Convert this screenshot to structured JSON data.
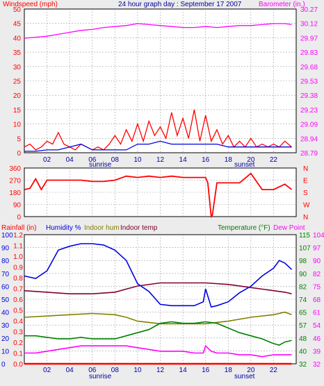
{
  "title": "24 hour graph day : September 17 2007",
  "hour_labels": [
    "02",
    "04",
    "06",
    "08",
    "10",
    "12",
    "14",
    "16",
    "18",
    "20",
    "22"
  ],
  "sunrise_label": "sunrise",
  "sunset_label": "sunset",
  "colors": {
    "panel_bg": "#ffffff",
    "page_bg": "#ececec",
    "grid": "#a0a0a0",
    "windspeed": "#ff0000",
    "barometer": "#ff00ff",
    "wind_dir": "#ff0000",
    "rainfall": "#ff0000",
    "humidity": "#0000e0",
    "indoor_hum": "#808000",
    "indoor_temp": "#800030",
    "temperature": "#008000",
    "dew_point": "#ff00ff"
  },
  "chart_data": [
    {
      "type": "line",
      "id": "wind-baro",
      "x_unit": "hour",
      "xlim": [
        0,
        24
      ],
      "left_axis": {
        "label": "Windspeed (mph)",
        "ticks": [
          "0",
          "5",
          "10",
          "15",
          "20",
          "25",
          "30",
          "35",
          "40",
          "45",
          "50"
        ],
        "ylim": [
          0,
          50
        ]
      },
      "right_axis": {
        "label": "Barometer (in.)",
        "ticks": [
          "28.79",
          "28.94",
          "29.09",
          "29.23",
          "29.38",
          "29.53",
          "29.68",
          "29.83",
          "29.97",
          "30.12",
          "30.27"
        ],
        "ylim": [
          28.79,
          30.27
        ]
      },
      "series": [
        {
          "axis": "right",
          "color_key": "barometer",
          "x": [
            0,
            1,
            2,
            3,
            4,
            5,
            6,
            7,
            8,
            9,
            10,
            11,
            12,
            13,
            14,
            15,
            16,
            17,
            18,
            19,
            20,
            21,
            22,
            23,
            23.6
          ],
          "y": [
            29.97,
            29.98,
            29.99,
            30.01,
            30.03,
            30.05,
            30.06,
            30.08,
            30.09,
            30.1,
            30.12,
            30.11,
            30.1,
            30.09,
            30.08,
            30.08,
            30.09,
            30.08,
            30.09,
            30.1,
            30.1,
            30.11,
            30.12,
            30.12,
            30.11
          ]
        },
        {
          "axis": "left",
          "color_key": "windspeed",
          "x": [
            0,
            0.5,
            1,
            1.5,
            2,
            2.5,
            3,
            3.5,
            4,
            4.5,
            5,
            5.5,
            6,
            6.5,
            7,
            7.5,
            8,
            8.5,
            9,
            9.5,
            10,
            10.5,
            11,
            11.5,
            12,
            12.5,
            13,
            13.5,
            14,
            14.5,
            15,
            15.5,
            16,
            16.5,
            17,
            17.5,
            18,
            18.5,
            19,
            19.5,
            20,
            20.5,
            21,
            21.5,
            22,
            22.5,
            23,
            23.6
          ],
          "y": [
            2,
            3,
            1,
            2,
            4,
            3,
            7,
            3,
            2,
            1,
            3,
            2,
            1,
            2,
            1,
            3,
            6,
            3,
            8,
            4,
            10,
            4,
            11,
            6,
            9,
            5,
            14,
            6,
            12,
            5,
            15,
            4,
            13,
            4,
            8,
            3,
            6,
            2,
            4,
            2,
            5,
            2,
            3,
            2,
            3,
            2,
            4,
            2
          ]
        },
        {
          "axis": "left",
          "color_key": "humidity",
          "x": [
            0,
            1,
            2,
            3,
            4,
            5,
            6,
            7,
            8,
            9,
            10,
            11,
            12,
            13,
            14,
            15,
            16,
            17,
            18,
            19,
            20,
            21,
            22,
            23,
            23.6
          ],
          "y": [
            0.5,
            0.5,
            1,
            1,
            2,
            3,
            1,
            1,
            1,
            1,
            3,
            3,
            4,
            3,
            3,
            3,
            3,
            3,
            2,
            2,
            2,
            2,
            2,
            2,
            2
          ]
        }
      ]
    },
    {
      "type": "line",
      "id": "wind-direction",
      "x_unit": "hour",
      "xlim": [
        0,
        24
      ],
      "left_axis": {
        "label": "",
        "ticks": [
          "0",
          "90",
          "180",
          "270",
          "360"
        ],
        "ylim": [
          0,
          360
        ]
      },
      "right_axis": {
        "label": "",
        "ticks": [
          "N",
          "W",
          "S",
          "E",
          "N"
        ]
      },
      "series": [
        {
          "axis": "left",
          "color_key": "wind_dir",
          "x": [
            0,
            0.5,
            1,
            1.5,
            2,
            3,
            4,
            5,
            6,
            7,
            8,
            9,
            10,
            11,
            12,
            13,
            14,
            15,
            16,
            16.2,
            16.5,
            16.6,
            17,
            18,
            19,
            20,
            21,
            22,
            23,
            23.6
          ],
          "y": [
            200,
            210,
            280,
            200,
            270,
            270,
            270,
            270,
            260,
            260,
            270,
            300,
            290,
            300,
            290,
            300,
            290,
            290,
            290,
            250,
            0,
            10,
            250,
            250,
            250,
            320,
            200,
            200,
            240,
            200
          ]
        }
      ]
    },
    {
      "type": "line",
      "id": "rain-hum-temp",
      "x_unit": "hour",
      "xlim": [
        0,
        24
      ],
      "left_axis": {
        "label": "Rainfall (in)",
        "ticks": [
          "0.0",
          "0.1",
          "0.2",
          "0.3",
          "0.4",
          "0.5",
          "0.6",
          "0.7",
          "0.8",
          "0.9",
          "1.0",
          "1.1",
          "1.2"
        ],
        "ylim": [
          0,
          1.2
        ]
      },
      "left_axis_2": {
        "label": "Humidity %",
        "ticks": [
          "0",
          "10",
          "20",
          "30",
          "40",
          "50",
          "60",
          "70",
          "80",
          "90",
          "100"
        ],
        "ylim": [
          0,
          100
        ]
      },
      "indoor_hum_label": "Indoor hum",
      "indoor_temp_label": "Indoor temp",
      "right_axis": {
        "label": "Temperature (°F)",
        "ticks": [
          "32",
          "40",
          "48",
          "57",
          "65",
          "74",
          "82",
          "90",
          "98",
          "107",
          "115"
        ],
        "ylim": [
          32,
          115
        ]
      },
      "right_axis_2": {
        "label": "Dew Point",
        "ticks": [
          "32",
          "39",
          "46",
          "54",
          "61",
          "68",
          "75",
          "82",
          "90",
          "97",
          "104"
        ],
        "ylim": [
          32,
          104
        ]
      },
      "series": [
        {
          "name": "Rainfall (in)",
          "axis": "rain",
          "color_key": "rainfall",
          "x": [
            0,
            23.6
          ],
          "y": [
            0.0,
            0.0
          ]
        },
        {
          "name": "Humidity %",
          "axis": "hum",
          "color_key": "humidity",
          "x": [
            0,
            1,
            2,
            3,
            4,
            5,
            6,
            7,
            8,
            9,
            10,
            11,
            12,
            13,
            14,
            15,
            15.8,
            16,
            16.5,
            17,
            18,
            19,
            20,
            21,
            22,
            22.5,
            23,
            23.6
          ],
          "y": [
            68,
            66,
            72,
            88,
            91,
            93,
            93,
            92,
            88,
            80,
            62,
            56,
            46,
            45,
            45,
            45,
            48,
            58,
            44,
            45,
            48,
            55,
            60,
            68,
            74,
            80,
            78,
            73
          ]
        },
        {
          "name": "Indoor hum",
          "axis": "hum",
          "color_key": "indoor_hum",
          "x": [
            0,
            2,
            4,
            6,
            8,
            9,
            10,
            12,
            14,
            16,
            18,
            20,
            22,
            23,
            23.6
          ],
          "y": [
            36,
            37,
            38,
            39,
            38,
            36,
            33,
            31,
            31,
            31,
            33,
            36,
            38,
            40,
            38
          ]
        },
        {
          "name": "Indoor temp",
          "axis": "temp",
          "color_key": "indoor_temp",
          "x": [
            0,
            2,
            4,
            6,
            8,
            9,
            10,
            12,
            14,
            16,
            18,
            20,
            22,
            23,
            23.6
          ],
          "y": [
            79,
            78,
            77,
            77,
            78,
            80,
            82,
            84,
            84,
            84,
            83,
            81,
            79,
            78,
            77
          ]
        },
        {
          "name": "Temperature (°F)",
          "axis": "temp",
          "color_key": "temperature",
          "x": [
            0,
            1,
            2,
            3,
            4,
            5,
            6,
            7,
            8,
            9,
            10,
            11,
            12,
            13,
            14,
            15,
            16,
            17,
            18,
            19,
            20,
            21,
            22,
            22.5,
            23,
            23.6
          ],
          "y": [
            50,
            50,
            49,
            48,
            48,
            49,
            48,
            48,
            48,
            50,
            52,
            54,
            58,
            59,
            58,
            58,
            59,
            58,
            55,
            52,
            50,
            48,
            45,
            44,
            46,
            47
          ]
        },
        {
          "name": "Dew Point",
          "axis": "dew",
          "color_key": "dew_point",
          "x": [
            0,
            1,
            2,
            3,
            4,
            5,
            6,
            7,
            8,
            9,
            10,
            11,
            12,
            13,
            14,
            15,
            15.8,
            16,
            16.5,
            17,
            18,
            19,
            20,
            21,
            22,
            23,
            23.6
          ],
          "y": [
            38,
            38,
            39,
            40,
            41,
            42,
            42,
            42,
            42,
            42,
            41,
            40,
            39,
            39,
            39,
            38,
            38,
            42,
            39,
            38,
            38,
            37,
            37,
            36,
            37,
            37,
            37
          ]
        }
      ]
    }
  ]
}
